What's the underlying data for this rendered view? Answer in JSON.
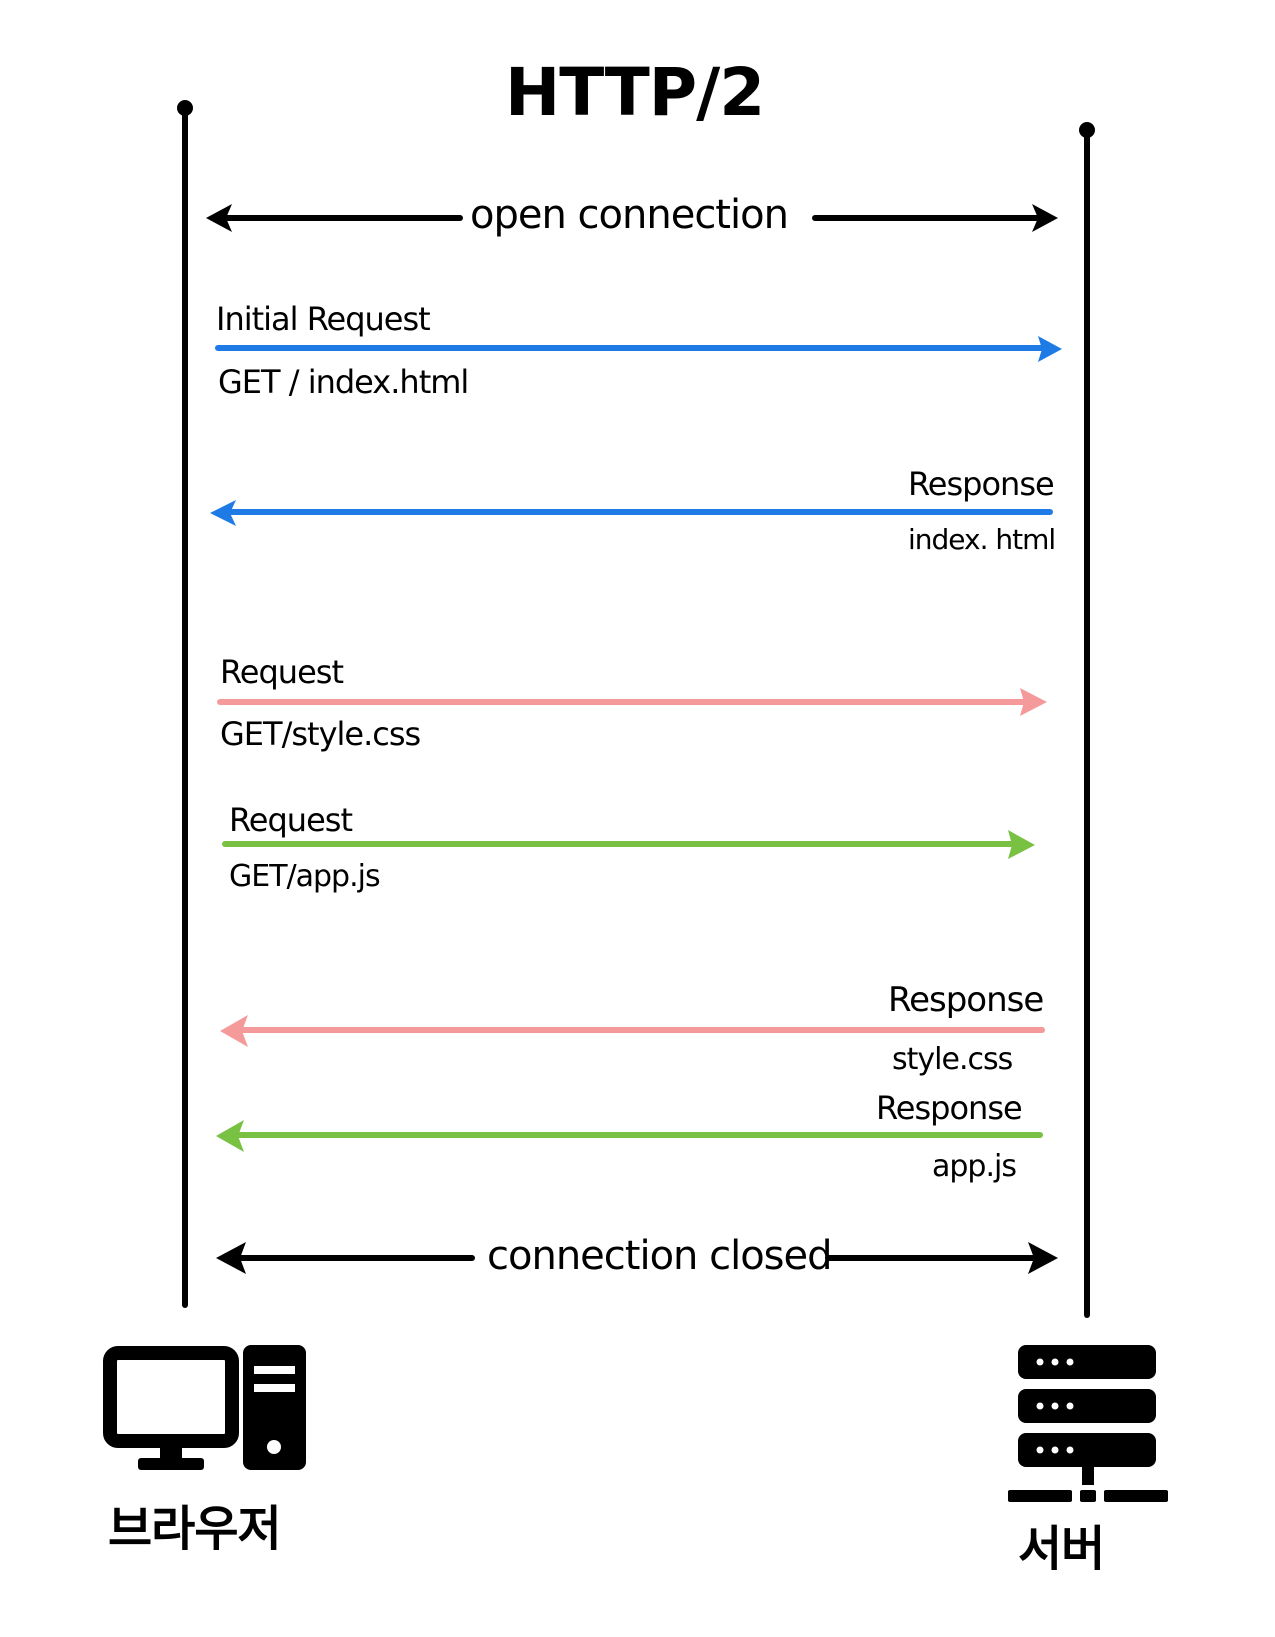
{
  "title": "HTTP/2",
  "participants": {
    "client_label": "브라우저",
    "server_label": "서버",
    "client_icon": "desktop-computer-icon",
    "server_icon": "server-rack-icon"
  },
  "connection": {
    "open_label": "open connection",
    "closed_label": "connection closed"
  },
  "messages": [
    {
      "direction": "client-to-server",
      "color": "#1e7be6",
      "label": "Initial Request",
      "detail": "GET / index.html"
    },
    {
      "direction": "server-to-client",
      "color": "#1e7be6",
      "label": "Response",
      "detail": "index. html"
    },
    {
      "direction": "client-to-server",
      "color": "#f59a9a",
      "label": "Request",
      "detail": "GET/style.css"
    },
    {
      "direction": "client-to-server",
      "color": "#79c142",
      "label": "Request",
      "detail": "GET/app.js"
    },
    {
      "direction": "server-to-client",
      "color": "#f59a9a",
      "label": "Response",
      "detail": "style.css"
    },
    {
      "direction": "server-to-client",
      "color": "#79c142",
      "label": "Response",
      "detail": "app.js"
    }
  ],
  "colors": {
    "ink": "#000000",
    "blue": "#1e7be6",
    "pink": "#f59a9a",
    "green": "#79c142"
  }
}
